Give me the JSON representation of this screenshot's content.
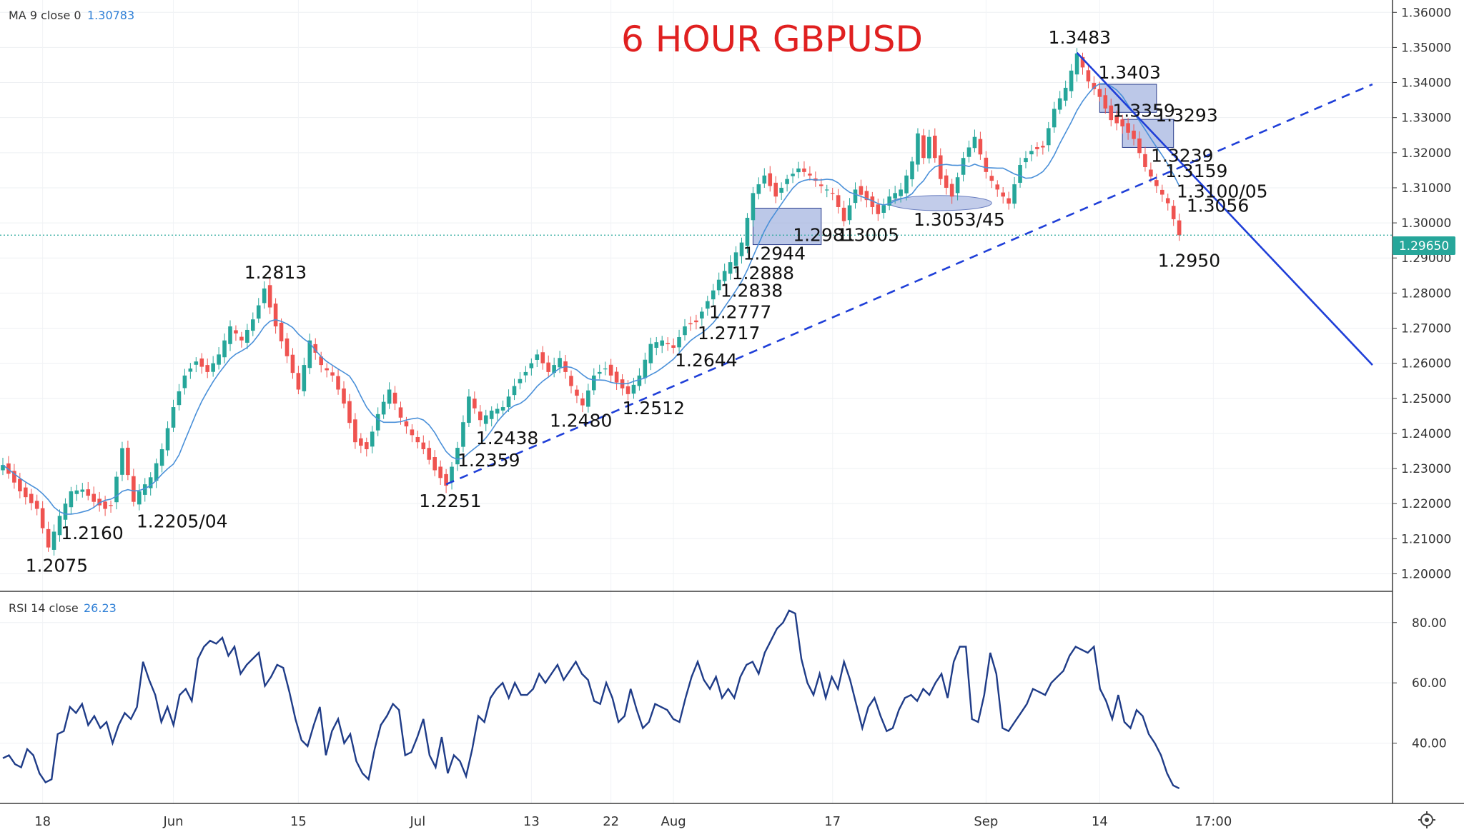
{
  "title": "6 HOUR GBPUSD",
  "legend": {
    "ma_name": "MA 9 close 0",
    "ma_value": "1.30783",
    "rsi_name": "RSI 14 close",
    "rsi_value": "26.23"
  },
  "current_price_label": "1.29650",
  "colors": {
    "up": "#26a69a",
    "down": "#ef5350",
    "ma": "#4a90d9",
    "trendline": "#1f3fd8",
    "rsi": "#1f3c88",
    "box_fill": "#8fa3d8",
    "title": "#e02020",
    "price_tag": "#26a69a"
  },
  "chart_data": [
    {
      "type": "candlestick",
      "title": "6 HOUR GBPUSD",
      "ylim": [
        1.195,
        1.3625
      ],
      "y_ticks": [
        "1.36000",
        "1.35000",
        "1.34000",
        "1.33000",
        "1.32000",
        "1.31000",
        "1.30000",
        "1.29000",
        "1.28000",
        "1.27000",
        "1.26000",
        "1.25000",
        "1.24000",
        "1.23000",
        "1.22000",
        "1.21000",
        "1.20000"
      ],
      "x_ticks": [
        "18",
        "Jun",
        "15",
        "Jul",
        "13",
        "22",
        "Aug",
        "17",
        "Sep",
        "14",
        "17:00"
      ],
      "close_path": [
        [
          0,
          1.231
        ],
        [
          3,
          1.2235
        ],
        [
          6,
          1.2185
        ],
        [
          8,
          1.2075
        ],
        [
          10,
          1.2165
        ],
        [
          12,
          1.2235
        ],
        [
          14,
          1.224
        ],
        [
          16,
          1.2205
        ],
        [
          18,
          1.2185
        ],
        [
          19,
          1.2195
        ],
        [
          21,
          1.2358
        ],
        [
          23,
          1.2205
        ],
        [
          24,
          1.2235
        ],
        [
          26,
          1.2275
        ],
        [
          28,
          1.2355
        ],
        [
          30,
          1.2475
        ],
        [
          32,
          1.2565
        ],
        [
          34,
          1.2605
        ],
        [
          36,
          1.2575
        ],
        [
          38,
          1.2625
        ],
        [
          40,
          1.2705
        ],
        [
          42,
          1.2665
        ],
        [
          44,
          1.2725
        ],
        [
          45,
          1.2765
        ],
        [
          46,
          1.2813
        ],
        [
          48,
          1.2705
        ],
        [
          50,
          1.262
        ],
        [
          52,
          1.2525
        ],
        [
          54,
          1.2665
        ],
        [
          56,
          1.2595
        ],
        [
          58,
          1.2565
        ],
        [
          60,
          1.2485
        ],
        [
          62,
          1.2375
        ],
        [
          64,
          1.2355
        ],
        [
          66,
          1.2455
        ],
        [
          68,
          1.2525
        ],
        [
          70,
          1.2445
        ],
        [
          72,
          1.2395
        ],
        [
          74,
          1.2355
        ],
        [
          76,
          1.2295
        ],
        [
          78,
          1.2251
        ],
        [
          80,
          1.2359
        ],
        [
          82,
          1.2505
        ],
        [
          84,
          1.2438
        ],
        [
          86,
          1.2465
        ],
        [
          88,
          1.2475
        ],
        [
          90,
          1.2535
        ],
        [
          92,
          1.2575
        ],
        [
          94,
          1.2625
        ],
        [
          96,
          1.2575
        ],
        [
          98,
          1.2615
        ],
        [
          100,
          1.2535
        ],
        [
          102,
          1.248
        ],
        [
          104,
          1.2565
        ],
        [
          106,
          1.2585
        ],
        [
          108,
          1.2545
        ],
        [
          110,
          1.2512
        ],
        [
          112,
          1.2565
        ],
        [
          114,
          1.2655
        ],
        [
          116,
          1.2665
        ],
        [
          118,
          1.2644
        ],
        [
          120,
          1.2705
        ],
        [
          122,
          1.2717
        ],
        [
          124,
          1.2777
        ],
        [
          126,
          1.2838
        ],
        [
          128,
          1.2888
        ],
        [
          130,
          1.2944
        ],
        [
          132,
          1.3085
        ],
        [
          134,
          1.3135
        ],
        [
          136,
          1.3075
        ],
        [
          138,
          1.3125
        ],
        [
          140,
          1.3155
        ],
        [
          142,
          1.3135
        ],
        [
          144,
          1.3105
        ],
        [
          146,
          1.3085
        ],
        [
          148,
          1.3005
        ],
        [
          150,
          1.3095
        ],
        [
          152,
          1.3065
        ],
        [
          154,
          1.3025
        ],
        [
          156,
          1.3075
        ],
        [
          158,
          1.3095
        ],
        [
          160,
          1.3175
        ],
        [
          161,
          1.3255
        ],
        [
          162,
          1.3185
        ],
        [
          163,
          1.3245
        ],
        [
          165,
          1.3125
        ],
        [
          167,
          1.3075
        ],
        [
          169,
          1.3185
        ],
        [
          171,
          1.3245
        ],
        [
          173,
          1.3145
        ],
        [
          175,
          1.3095
        ],
        [
          177,
          1.3055
        ],
        [
          179,
          1.3165
        ],
        [
          181,
          1.3205
        ],
        [
          183,
          1.3215
        ],
        [
          185,
          1.3325
        ],
        [
          187,
          1.3385
        ],
        [
          189,
          1.3483
        ],
        [
          191,
          1.3403
        ],
        [
          193,
          1.3359
        ],
        [
          195,
          1.3293
        ],
        [
          197,
          1.3275
        ],
        [
          199,
          1.3239
        ],
        [
          201,
          1.3159
        ],
        [
          203,
          1.3105
        ],
        [
          205,
          1.3056
        ],
        [
          207,
          1.2965
        ]
      ]
    },
    {
      "type": "line",
      "title": "RSI 14 close",
      "ylim": [
        20,
        88
      ],
      "y_ticks": [
        "80.00",
        "60.00",
        "40.00"
      ],
      "values": [
        35,
        36,
        33,
        32,
        38,
        36,
        30,
        27,
        28,
        43,
        44,
        52,
        50,
        53,
        46,
        49,
        45,
        47,
        40,
        46,
        50,
        48,
        52,
        67,
        61,
        56,
        47,
        52,
        46,
        56,
        58,
        54,
        68,
        72,
        74,
        73,
        75,
        69,
        72,
        63,
        66,
        68,
        70,
        59,
        62,
        66,
        65,
        57,
        48,
        41,
        39,
        46,
        52,
        36,
        44,
        48,
        40,
        43,
        34,
        30,
        28,
        38,
        46,
        49,
        53,
        51,
        36,
        37,
        42,
        48,
        36,
        32,
        42,
        30,
        36,
        34,
        29,
        38,
        49,
        47,
        55,
        58,
        60,
        55,
        60,
        56,
        56,
        58,
        63,
        60,
        63,
        66,
        61,
        64,
        67,
        63,
        61,
        54,
        53,
        60,
        55,
        47,
        49,
        58,
        51,
        45,
        47,
        53,
        52,
        51,
        48,
        47,
        55,
        62,
        67,
        61,
        58,
        62,
        55,
        58,
        55,
        62,
        66,
        67,
        63,
        70,
        74,
        78,
        80,
        84,
        83,
        68,
        60,
        56,
        63,
        55,
        62,
        58,
        67,
        61,
        53,
        45,
        52,
        55,
        49,
        44,
        45,
        51,
        55,
        56,
        54,
        58,
        56,
        60,
        63,
        55,
        67,
        72,
        72,
        48,
        47,
        56,
        70,
        63,
        45,
        44,
        47,
        50,
        53,
        58,
        57,
        56,
        60,
        62,
        64,
        69,
        72,
        71,
        70,
        72,
        58,
        54,
        48,
        56,
        47,
        45,
        51,
        49,
        43,
        40,
        36,
        30,
        26,
        25
      ]
    }
  ],
  "annotations": [
    {
      "text": "1.3483",
      "x": 189,
      "y": 1.3483
    },
    {
      "text": "1.3403",
      "x": 191,
      "y": 1.3403
    },
    {
      "text": "1.3359",
      "x": 193,
      "y": 1.3359
    },
    {
      "text": "1.3293",
      "x": 195,
      "y": 1.3293
    },
    {
      "text": "1.3239",
      "x": 199,
      "y": 1.3239
    },
    {
      "text": "1.3159",
      "x": 201,
      "y": 1.3159
    },
    {
      "text": "1.3100/05",
      "x": 203,
      "y": 1.3105
    },
    {
      "text": "1.3056",
      "x": 205,
      "y": 1.3056
    },
    {
      "text": "1.2950",
      "x": 207,
      "y": 1.295
    },
    {
      "text": "1.2981",
      "x": 136,
      "y": 1.2981
    },
    {
      "text": "1.3005",
      "x": 148,
      "y": 1.3005
    },
    {
      "text": "1.3053/45",
      "x": 159,
      "y": 1.3053
    },
    {
      "text": "1.2944",
      "x": 130,
      "y": 1.2944
    },
    {
      "text": "1.2888",
      "x": 128,
      "y": 1.2888
    },
    {
      "text": "1.2838",
      "x": 126,
      "y": 1.2838
    },
    {
      "text": "1.2777",
      "x": 124,
      "y": 1.2777
    },
    {
      "text": "1.2717",
      "x": 122,
      "y": 1.2717
    },
    {
      "text": "1.2644",
      "x": 118,
      "y": 1.2644
    },
    {
      "text": "1.2512",
      "x": 110,
      "y": 1.2512
    },
    {
      "text": "1.2480",
      "x": 102,
      "y": 1.248
    },
    {
      "text": "1.2438",
      "x": 84,
      "y": 1.2438
    },
    {
      "text": "1.2359",
      "x": 80,
      "y": 1.2359
    },
    {
      "text": "1.2251",
      "x": 78,
      "y": 1.2251
    },
    {
      "text": "1.2813",
      "x": 46,
      "y": 1.2813
    },
    {
      "text": "1.2205/04",
      "x": 23,
      "y": 1.2205
    },
    {
      "text": "1.2160",
      "x": 14,
      "y": 1.216
    },
    {
      "text": "1.2075",
      "x": 8,
      "y": 1.2075
    }
  ],
  "trendlines": [
    {
      "style": "dashed",
      "from": [
        78,
        1.2255
      ],
      "to": [
        241,
        1.3395
      ]
    },
    {
      "style": "solid",
      "from": [
        189,
        1.3485
      ],
      "to": [
        241,
        1.2595
      ]
    }
  ],
  "zones": [
    {
      "x": [
        132,
        144
      ],
      "y": [
        1.2938,
        1.3042
      ]
    },
    {
      "x": [
        193,
        203
      ],
      "y": [
        1.3315,
        1.3395
      ]
    },
    {
      "x": [
        197,
        206
      ],
      "y": [
        1.3215,
        1.3295
      ]
    },
    {
      "x": [
        156,
        174
      ],
      "y": [
        1.3035,
        1.3078
      ],
      "shape": "ellipse"
    }
  ]
}
